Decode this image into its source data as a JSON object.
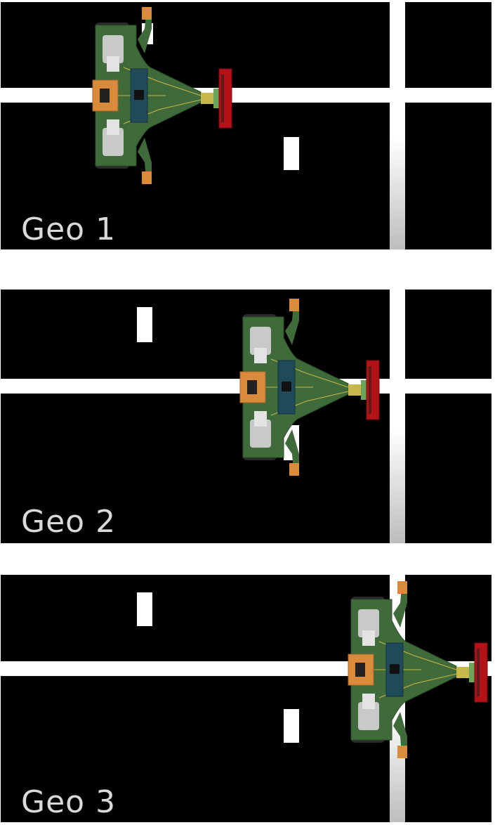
{
  "panels": [
    {
      "label": "Geo 1"
    },
    {
      "label": "Geo 2"
    },
    {
      "label": "Geo 3"
    }
  ],
  "colors": {
    "track": "#000000",
    "line": "#ffffff",
    "pcb": "#3f6b3a",
    "sensor_bar": "#b31217",
    "controller": "#d98a3a",
    "motor": "#c9c9c9",
    "wheel": "#2a2a2a"
  }
}
